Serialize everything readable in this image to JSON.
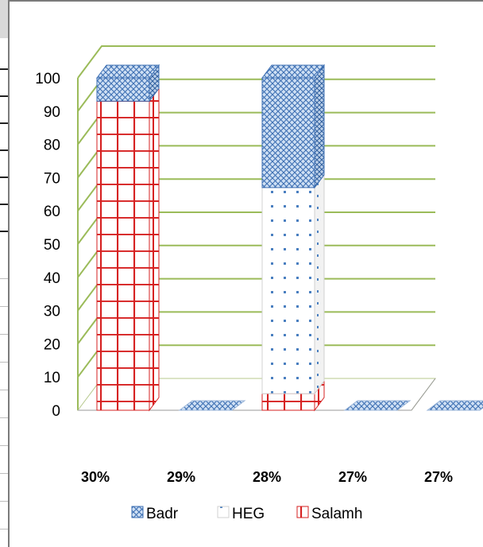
{
  "chart_data": {
    "type": "bar",
    "stacked": true,
    "three_d": true,
    "categories": [
      "30%",
      "29%",
      "28%",
      "27%",
      "27%"
    ],
    "series": [
      {
        "name": "Salamh",
        "values": [
          93,
          0,
          5,
          0,
          0
        ]
      },
      {
        "name": "HEG",
        "values": [
          0,
          0,
          62,
          0,
          0
        ]
      },
      {
        "name": "Badr",
        "values": [
          7,
          0,
          33,
          0,
          0
        ]
      }
    ],
    "ylim": [
      0,
      100
    ],
    "yticks": [
      "0",
      "10",
      "20",
      "30",
      "40",
      "50",
      "60",
      "70",
      "80",
      "90",
      "100"
    ],
    "grid": true,
    "legend": "bottom",
    "legend_order": [
      "Badr",
      "HEG",
      "Salamh"
    ],
    "colors": {
      "Salamh": "#d62020",
      "HEG": "#4a7fc0",
      "Badr": "#3d6fb3",
      "grid": "#9bbb59"
    }
  }
}
